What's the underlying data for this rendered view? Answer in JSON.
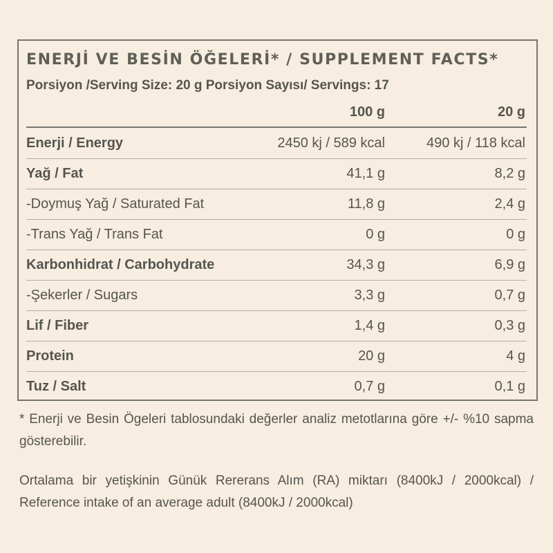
{
  "title": "ENERJİ VE BESİN ÖĞELERİ* / SUPPLEMENT FACTS*",
  "serving": "Porsiyon /Serving Size: 20 g Porsiyon Sayısı/ Servings: 17",
  "table": {
    "header": [
      "100 g",
      "20 g"
    ],
    "rows": [
      {
        "label": "Enerji / Energy",
        "bold": true,
        "cells": [
          "2450 kj / 589 kcal",
          "490 kj / 118 kcal"
        ]
      },
      {
        "label": "Yağ / Fat",
        "bold": true,
        "cells": [
          "41,1 g",
          "8,2 g"
        ]
      },
      {
        "label": "-Doymuş Yağ / Saturated Fat",
        "bold": false,
        "cells": [
          "11,8 g",
          "2,4 g"
        ]
      },
      {
        "label": "-Trans Yağ / Trans Fat",
        "bold": false,
        "cells": [
          "0 g",
          "0 g"
        ]
      },
      {
        "label": "Karbonhidrat / Carbohydrate",
        "bold": true,
        "cells": [
          "34,3 g",
          "6,9 g"
        ]
      },
      {
        "label": "-Şekerler / Sugars",
        "bold": false,
        "cells": [
          "3,3 g",
          "0,7 g"
        ]
      },
      {
        "label": "Lif / Fiber",
        "bold": true,
        "cells": [
          "1,4 g",
          "0,3 g"
        ]
      },
      {
        "label": "Protein",
        "bold": true,
        "cells": [
          "20 g",
          "4 g"
        ]
      },
      {
        "label": "Tuz / Salt",
        "bold": true,
        "cells": [
          "0,7 g",
          "0,1 g"
        ]
      }
    ]
  },
  "footnotes": [
    "* Enerji ve Besin Ögeleri tablosundaki değerler analiz metotlarına göre +/- %10 sapma gösterebilir.",
    "Ortalama bir yetişkinin Günük Rererans Alım (RA) miktarı (8400kJ / 2000kcal) / Reference intake of an average adult (8400kJ / 2000kcal)"
  ]
}
